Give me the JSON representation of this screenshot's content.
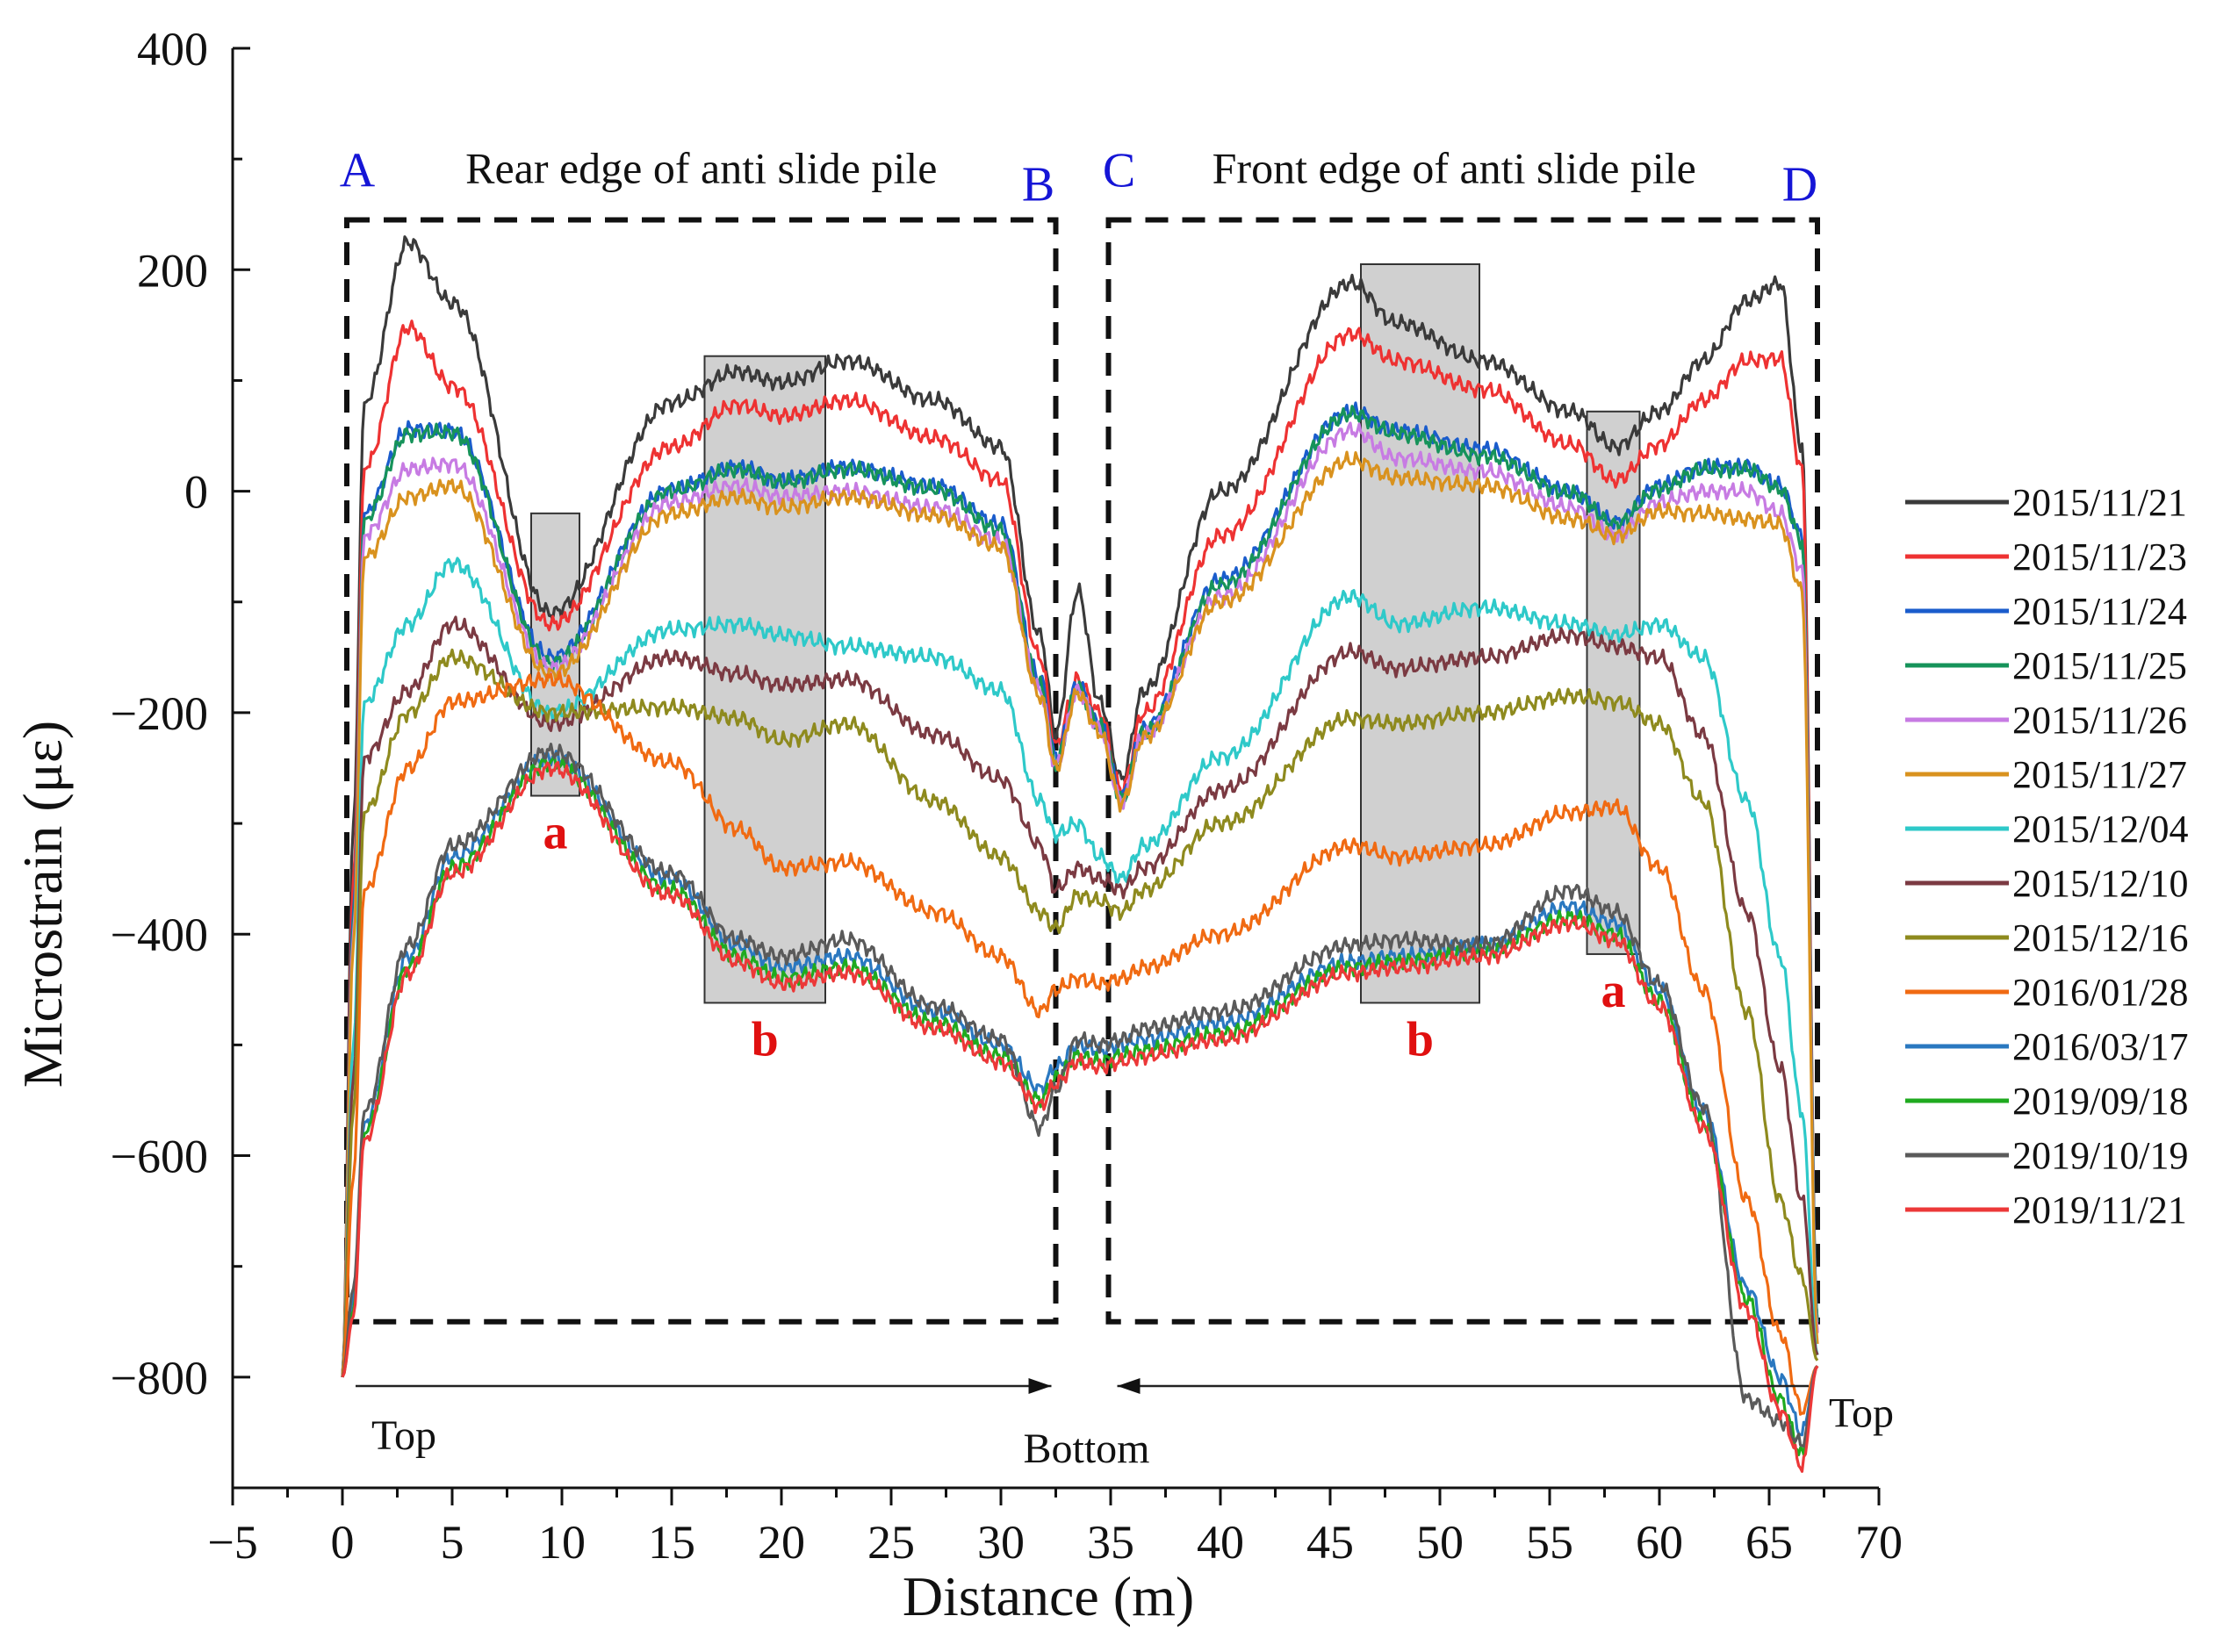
{
  "chart_data": {
    "type": "line",
    "xlabel": "Distance (m)",
    "ylabel": "Microstrain (με)",
    "xlim": [
      -5,
      70
    ],
    "ylim": [
      -900,
      400
    ],
    "x_ticks": [
      -5,
      0,
      5,
      10,
      15,
      20,
      25,
      30,
      35,
      40,
      45,
      50,
      55,
      60,
      65,
      70
    ],
    "y_ticks": [
      400,
      200,
      0,
      -200,
      -400,
      -600,
      -800
    ],
    "x_tick_labels": [
      "−5",
      "0",
      "5",
      "10",
      "15",
      "20",
      "25",
      "30",
      "35",
      "40",
      "45",
      "50",
      "55",
      "60",
      "65",
      "70"
    ],
    "y_tick_labels": [
      "400",
      "200",
      "0",
      "−200",
      "−400",
      "−600",
      "−800"
    ],
    "regions": [
      {
        "title": "Rear edge of anti slide pile",
        "start_letter": "A",
        "end_letter": "B",
        "x_range": [
          0.2,
          32.5
        ],
        "y_range": [
          -750,
          245
        ]
      },
      {
        "title": "Front edge of anti slide pile",
        "start_letter": "C",
        "end_letter": "D",
        "x_range": [
          34.9,
          67.2
        ],
        "y_range": [
          -750,
          245
        ]
      }
    ],
    "zones": [
      {
        "label": "a",
        "x_range": [
          8.6,
          10.8
        ],
        "y_range": [
          -275,
          -20
        ]
      },
      {
        "label": "b",
        "x_range": [
          16.5,
          22.0
        ],
        "y_range": [
          -462,
          122
        ]
      },
      {
        "label": "b",
        "x_range": [
          46.4,
          51.8
        ],
        "y_range": [
          -462,
          205
        ]
      },
      {
        "label": "a",
        "x_range": [
          56.7,
          59.1
        ],
        "y_range": [
          -418,
          72
        ]
      }
    ],
    "direction_labels": {
      "left_top": "Top",
      "bottom": "Bottom",
      "right_top": "Top"
    },
    "x_shared": [
      0,
      0.5,
      1,
      3,
      5,
      9.5,
      15,
      18,
      20,
      23,
      27,
      30,
      31.8,
      32.5,
      33.5,
      34.5,
      35.5,
      36.5,
      40,
      46,
      48,
      52,
      56,
      58,
      60,
      62,
      64,
      65.5,
      66.5,
      67.2
    ],
    "series": [
      {
        "name": "2015/11/21",
        "color": "#3a3a3a",
        "values": [
          -800,
          -300,
          80,
          225,
          170,
          -110,
          80,
          108,
          98,
          118,
          82,
          40,
          -130,
          -220,
          -90,
          -190,
          -260,
          -180,
          0,
          188,
          152,
          118,
          72,
          40,
          72,
          118,
          172,
          188,
          40,
          -750
        ]
      },
      {
        "name": "2015/11/23",
        "color": "#ee3232",
        "values": [
          -800,
          -350,
          20,
          148,
          95,
          -120,
          40,
          78,
          68,
          82,
          48,
          10,
          -150,
          -230,
          -170,
          -200,
          -270,
          -200,
          -40,
          142,
          118,
          92,
          42,
          10,
          42,
          82,
          118,
          120,
          20,
          -760
        ]
      },
      {
        "name": "2015/11/24",
        "color": "#1a5ccc",
        "values": [
          -800,
          -380,
          -20,
          56,
          55,
          -150,
          2,
          22,
          10,
          22,
          5,
          -30,
          -170,
          -240,
          -175,
          -210,
          -275,
          -215,
          -80,
          72,
          55,
          38,
          0,
          -28,
          5,
          22,
          22,
          5,
          -40,
          -750
        ]
      },
      {
        "name": "2015/11/25",
        "color": "#16935a",
        "values": [
          -800,
          -390,
          -25,
          52,
          53,
          -155,
          0,
          20,
          8,
          20,
          2,
          -35,
          -175,
          -245,
          -178,
          -212,
          -278,
          -218,
          -85,
          70,
          52,
          32,
          -2,
          -30,
          2,
          20,
          20,
          2,
          -45,
          -750
        ]
      },
      {
        "name": "2015/11/26",
        "color": "#c77be3",
        "values": [
          -800,
          -400,
          -40,
          20,
          25,
          -160,
          -10,
          5,
          -5,
          0,
          -15,
          -45,
          -180,
          -248,
          -180,
          -215,
          -280,
          -220,
          -95,
          55,
          30,
          18,
          -15,
          -40,
          -10,
          0,
          0,
          -20,
          -70,
          -760
        ]
      },
      {
        "name": "2015/11/27",
        "color": "#d9921e",
        "values": [
          -800,
          -410,
          -60,
          -5,
          5,
          -165,
          -20,
          -5,
          -15,
          -5,
          -22,
          -50,
          -185,
          -250,
          -182,
          -218,
          -282,
          -222,
          -100,
          28,
          12,
          5,
          -25,
          -40,
          -18,
          -20,
          -25,
          -30,
          -90,
          -770
        ]
      },
      {
        "name": "2015/12/04",
        "color": "#2ec9c9",
        "values": [
          -800,
          -500,
          -190,
          -120,
          -65,
          -200,
          -125,
          -120,
          -130,
          -140,
          -150,
          -180,
          -280,
          -310,
          -300,
          -330,
          -350,
          -320,
          -240,
          -95,
          -120,
          -105,
          -120,
          -130,
          -120,
          -150,
          -280,
          -420,
          -560,
          -780
        ]
      },
      {
        "name": "2015/12/10",
        "color": "#7b3a42",
        "values": [
          -800,
          -530,
          -240,
          -180,
          -120,
          -210,
          -150,
          -165,
          -175,
          -170,
          -220,
          -260,
          -320,
          -360,
          -340,
          -350,
          -360,
          -340,
          -270,
          -145,
          -160,
          -150,
          -130,
          -140,
          -150,
          -220,
          -380,
          -520,
          -640,
          -780
        ]
      },
      {
        "name": "2015/12/16",
        "color": "#8e8a1e",
        "values": [
          -800,
          -560,
          -290,
          -200,
          -150,
          -200,
          -195,
          -205,
          -225,
          -210,
          -280,
          -330,
          -380,
          -395,
          -365,
          -370,
          -380,
          -360,
          -300,
          -205,
          -210,
          -200,
          -185,
          -190,
          -210,
          -280,
          -470,
          -640,
          -710,
          -785
        ]
      },
      {
        "name": "2016/01/28",
        "color": "#f06a12",
        "values": [
          -800,
          -620,
          -360,
          -250,
          -190,
          -170,
          -245,
          -305,
          -340,
          -335,
          -380,
          -420,
          -470,
          -450,
          -440,
          -445,
          -440,
          -430,
          -400,
          -320,
          -330,
          -320,
          -290,
          -285,
          -340,
          -450,
          -640,
          -760,
          -830,
          -790
        ]
      },
      {
        "name": "2016/03/17",
        "color": "#2a78c0",
        "values": [
          -800,
          -730,
          -570,
          -420,
          -330,
          -240,
          -350,
          -410,
          -430,
          -420,
          -470,
          -500,
          -540,
          -520,
          -500,
          -505,
          -500,
          -495,
          -480,
          -425,
          -420,
          -410,
          -375,
          -390,
          -450,
          -560,
          -720,
          -800,
          -850,
          -790
        ]
      },
      {
        "name": "2019/09/18",
        "color": "#1faa1f",
        "values": [
          -800,
          -740,
          -580,
          -430,
          -340,
          -245,
          -360,
          -420,
          -440,
          -430,
          -480,
          -510,
          -550,
          -530,
          -510,
          -515,
          -510,
          -505,
          -490,
          -430,
          -425,
          -415,
          -385,
          -400,
          -460,
          -570,
          -730,
          -820,
          -870,
          -790
        ]
      },
      {
        "name": "2019/10/19",
        "color": "#5a5a5a",
        "values": [
          -800,
          -720,
          -560,
          -410,
          -320,
          -235,
          -345,
          -405,
          -420,
          -405,
          -465,
          -495,
          -575,
          -540,
          -495,
          -500,
          -495,
          -485,
          -470,
          -410,
          -405,
          -410,
          -360,
          -380,
          -445,
          -555,
          -820,
          -840,
          -860,
          -790
        ]
      },
      {
        "name": "2019/11/21",
        "color": "#ec3838",
        "values": [
          -800,
          -745,
          -585,
          -435,
          -345,
          -250,
          -365,
          -425,
          -445,
          -435,
          -485,
          -515,
          -555,
          -535,
          -515,
          -520,
          -515,
          -510,
          -495,
          -435,
          -430,
          -420,
          -390,
          -405,
          -465,
          -575,
          -740,
          -830,
          -880,
          -790
        ]
      }
    ]
  }
}
